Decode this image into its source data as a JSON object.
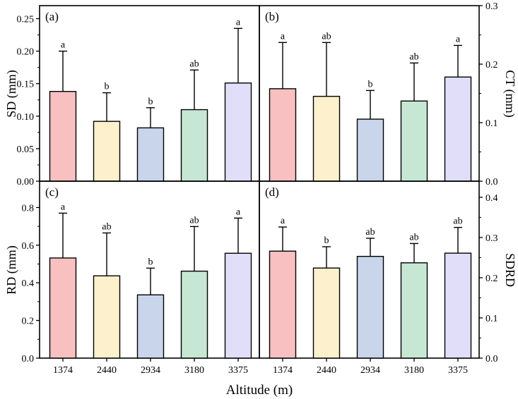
{
  "figure": {
    "xlabel": "Altitude (m)",
    "bar_colors": [
      "#f8c0c0",
      "#fdf0cc",
      "#c9d5eb",
      "#c6e7d4",
      "#e0def8"
    ]
  },
  "chart_data": [
    {
      "type": "bar",
      "panel_label": "(a)",
      "ylabel": "SD (mm)",
      "categories": [
        "1374",
        "2440",
        "2934",
        "3180",
        "3375"
      ],
      "values": [
        0.138,
        0.092,
        0.082,
        0.11,
        0.151
      ],
      "errors": [
        0.062,
        0.044,
        0.031,
        0.061,
        0.084
      ],
      "letters": [
        "a",
        "b",
        "b",
        "ab",
        "a"
      ],
      "ylim": [
        0,
        0.27
      ],
      "yticks": [
        "0.00",
        "0.05",
        "0.10",
        "0.15",
        "0.20",
        "0.25"
      ],
      "yaxis_side": "left"
    },
    {
      "type": "bar",
      "panel_label": "(b)",
      "ylabel": "CT (mm)",
      "categories": [
        "1374",
        "2440",
        "2934",
        "3180",
        "3375"
      ],
      "values": [
        0.158,
        0.145,
        0.106,
        0.137,
        0.178
      ],
      "errors": [
        0.079,
        0.092,
        0.049,
        0.065,
        0.054
      ],
      "letters": [
        "a",
        "ab",
        "b",
        "ab",
        "a"
      ],
      "ylim": [
        0,
        0.3
      ],
      "yticks": [
        "0.0",
        "0.1",
        "0.2",
        "0.3"
      ],
      "yaxis_side": "right"
    },
    {
      "type": "bar",
      "panel_label": "(c)",
      "ylabel": "RD (mm)",
      "categories": [
        "1374",
        "2440",
        "2934",
        "3180",
        "3375"
      ],
      "values": [
        0.532,
        0.437,
        0.336,
        0.462,
        0.557
      ],
      "errors": [
        0.238,
        0.228,
        0.142,
        0.237,
        0.187
      ],
      "letters": [
        "a",
        "ab",
        "b",
        "ab",
        "a"
      ],
      "ylim": [
        0,
        0.94
      ],
      "yticks": [
        "0.0",
        "0.2",
        "0.4",
        "0.6",
        "0.8"
      ],
      "yaxis_side": "left"
    },
    {
      "type": "bar",
      "panel_label": "(d)",
      "ylabel": "SDRD",
      "categories": [
        "1374",
        "2440",
        "2934",
        "3180",
        "3375"
      ],
      "values": [
        0.266,
        0.224,
        0.253,
        0.237,
        0.261
      ],
      "errors": [
        0.06,
        0.053,
        0.045,
        0.048,
        0.064
      ],
      "letters": [
        "a",
        "b",
        "ab",
        "ab",
        "ab"
      ],
      "ylim": [
        0,
        0.44
      ],
      "yticks": [
        "0.0",
        "0.1",
        "0.2",
        "0.3",
        "0.4"
      ],
      "yaxis_side": "right"
    }
  ]
}
